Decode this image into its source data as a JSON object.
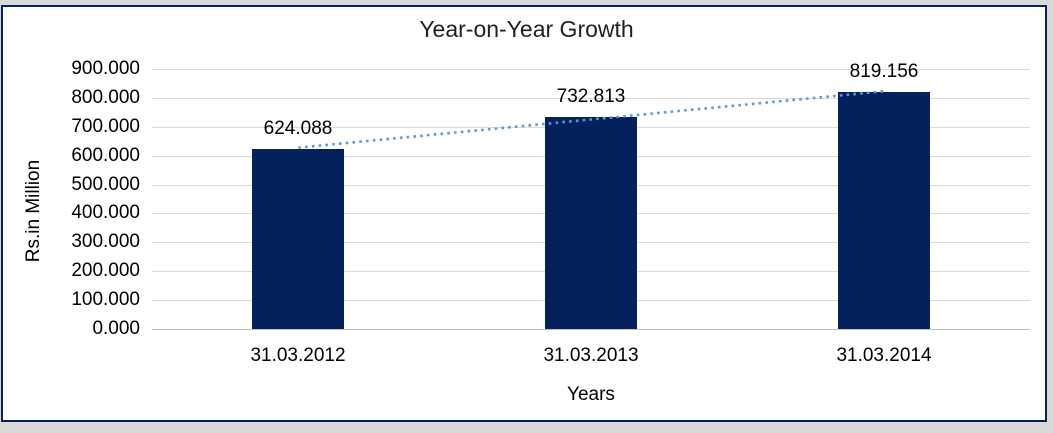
{
  "chart_data": {
    "type": "bar",
    "title": "Year-on-Year Growth",
    "categories": [
      "31.03.2012",
      "31.03.2013",
      "31.03.2014"
    ],
    "values": [
      624.088,
      732.813,
      819.156
    ],
    "data_labels": [
      "624.088",
      "732.813",
      "819.156"
    ],
    "xlabel": "Years",
    "ylabel": "Rs.in Million",
    "ylim": [
      0,
      900
    ],
    "ytick_step": 100,
    "ytick_labels": [
      "0.000",
      "100.000",
      "200.000",
      "300.000",
      "400.000",
      "500.000",
      "600.000",
      "700.000",
      "800.000",
      "900.000"
    ],
    "grid": true,
    "legend_position": "none",
    "trendline": {
      "type": "linear",
      "style": "dotted"
    },
    "colors": {
      "bar": "#04215e",
      "frame_border": "#04215e",
      "trendline": "#5b9bd5",
      "gridline": "#d9d9d9",
      "axis_line": "#bfbfbf",
      "text": "#000000",
      "page_background": "#d9d9d9",
      "chart_background": "#ffffff"
    }
  }
}
